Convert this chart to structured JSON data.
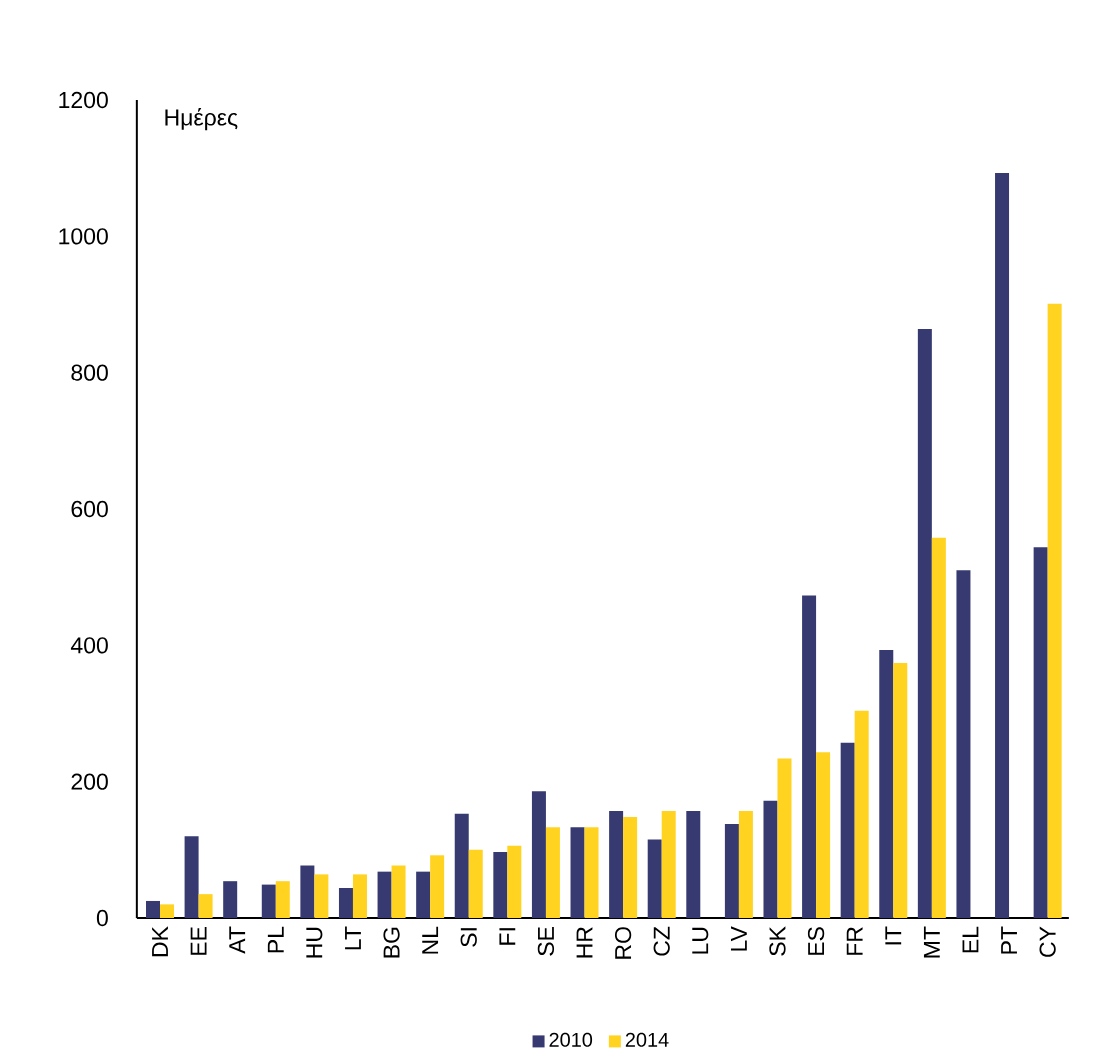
{
  "chart_data": {
    "type": "bar",
    "ylabel": "Ημέρες",
    "categories": [
      "DK",
      "EE",
      "AT",
      "PL",
      "HU",
      "LT",
      "BG",
      "NL",
      "SI",
      "FI",
      "SE",
      "HR",
      "RO",
      "CZ",
      "LU",
      "LV",
      "SK",
      "ES",
      "FR",
      "IT",
      "MT",
      "EL",
      "PT",
      "CY"
    ],
    "series": [
      {
        "name": "2010",
        "color": "#363a70",
        "values": [
          25,
          120,
          54,
          49,
          77,
          44,
          68,
          68,
          153,
          97,
          186,
          133,
          157,
          115,
          157,
          138,
          172,
          473,
          257,
          393,
          864,
          510,
          1093,
          544
        ]
      },
      {
        "name": "2014",
        "color": "#ffd320",
        "values": [
          20,
          35,
          null,
          54,
          64,
          64,
          77,
          92,
          100,
          106,
          133,
          133,
          148,
          157,
          null,
          157,
          234,
          243,
          304,
          374,
          558,
          null,
          null,
          901
        ]
      }
    ],
    "ylim": [
      0,
      1200
    ],
    "yticks": [
      0,
      200,
      400,
      600,
      800,
      1000,
      1200
    ],
    "legend": "bottom"
  }
}
